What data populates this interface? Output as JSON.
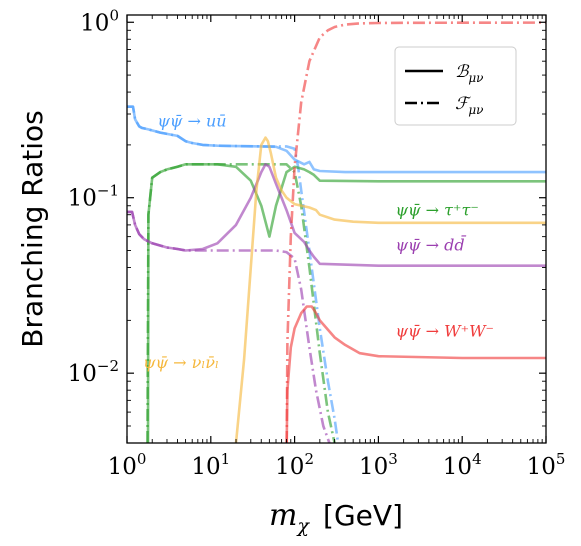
{
  "chart_data": {
    "type": "line",
    "xlabel_main": "m",
    "xlabel_sub": "χ",
    "xlabel_unit": "[GeV]",
    "ylabel": "Branching Ratios",
    "xscale": "log",
    "yscale": "log",
    "xlim": [
      1,
      100000
    ],
    "ylim": [
      0.004,
      1.1
    ],
    "grid": false,
    "legend_placement": "top-right",
    "x_ticks": [
      {
        "value": 1,
        "base": "10",
        "exp": "0"
      },
      {
        "value": 10,
        "base": "10",
        "exp": "1"
      },
      {
        "value": 100,
        "base": "10",
        "exp": "2"
      },
      {
        "value": 1000,
        "base": "10",
        "exp": "3"
      },
      {
        "value": 10000,
        "base": "10",
        "exp": "4"
      },
      {
        "value": 100000,
        "base": "10",
        "exp": "5"
      }
    ],
    "y_ticks": [
      {
        "value": 1,
        "base": "10",
        "exp": "0"
      },
      {
        "value": 0.1,
        "base": "10",
        "exp": "−1"
      },
      {
        "value": 0.01,
        "base": "10",
        "exp": "−2"
      }
    ],
    "legend": [
      {
        "label": "ℬ",
        "sub": "μν",
        "style": "solid"
      },
      {
        "label": "ℱ",
        "sub": "μν",
        "style": "dashdot"
      }
    ],
    "annotations": [
      {
        "text": "ψψ̄ → uū",
        "x": 2.3,
        "y": 0.255,
        "color": "#4a9eff"
      },
      {
        "text": "ψψ̄ → τ⁺τ⁻",
        "x": 1600,
        "y": 0.079,
        "color": "#2ca02c"
      },
      {
        "text": "ψψ̄ → dd̄",
        "x": 1600,
        "y": 0.05,
        "color": "#9b3fb0"
      },
      {
        "text": "ψψ̄ → W⁺W⁻",
        "x": 1600,
        "y": 0.0162,
        "color": "#f03c3c"
      },
      {
        "text": "ψψ̄ → νₗν̄ₗ",
        "x": 1.55,
        "y": 0.0107,
        "color": "#f5b83d"
      }
    ],
    "series": [
      {
        "channel": "uu",
        "style": "solid",
        "color": "#4a9eff",
        "x": [
          1,
          1.18,
          1.25,
          1.4,
          1.5,
          1.8,
          2.5,
          4,
          5,
          6,
          8,
          12,
          20,
          40,
          60,
          80,
          100,
          130,
          150,
          170,
          200,
          400,
          1000,
          100000
        ],
        "y": [
          0.33,
          0.33,
          0.28,
          0.255,
          0.25,
          0.245,
          0.235,
          0.225,
          0.21,
          0.205,
          0.2,
          0.198,
          0.197,
          0.196,
          0.195,
          0.185,
          0.165,
          0.155,
          0.16,
          0.145,
          0.142,
          0.14,
          0.14,
          0.14
        ]
      },
      {
        "channel": "uu",
        "style": "dashdot",
        "color": "#4a9eff",
        "x": [
          1,
          1.18,
          1.25,
          1.4,
          1.5,
          1.8,
          2.5,
          4,
          5,
          6,
          8,
          12,
          20,
          40,
          60,
          80,
          100,
          110,
          120,
          150,
          200,
          250,
          300,
          330
        ],
        "y": [
          0.33,
          0.33,
          0.28,
          0.255,
          0.25,
          0.245,
          0.235,
          0.225,
          0.21,
          0.205,
          0.2,
          0.198,
          0.197,
          0.196,
          0.196,
          0.196,
          0.19,
          0.15,
          0.11,
          0.05,
          0.018,
          0.009,
          0.0055,
          0.004
        ]
      },
      {
        "channel": "tautau",
        "style": "solid",
        "color": "#2ca02c",
        "x": [
          1.78,
          1.8,
          2,
          2.5,
          3,
          4,
          5,
          8,
          12,
          20,
          30,
          40,
          50,
          60,
          80,
          100,
          130,
          150,
          170,
          200,
          1000,
          100000
        ],
        "y": [
          0.004,
          0.08,
          0.13,
          0.14,
          0.145,
          0.15,
          0.155,
          0.155,
          0.155,
          0.15,
          0.125,
          0.09,
          0.06,
          0.09,
          0.14,
          0.15,
          0.145,
          0.14,
          0.135,
          0.125,
          0.124,
          0.124
        ]
      },
      {
        "channel": "tautau",
        "style": "dashdot",
        "color": "#2ca02c",
        "x": [
          1.75,
          1.8,
          2,
          2.5,
          3,
          4,
          5,
          8,
          12,
          20,
          40,
          60,
          80,
          100,
          120,
          150,
          200,
          250,
          300
        ],
        "y": [
          0.004,
          0.08,
          0.13,
          0.14,
          0.145,
          0.15,
          0.155,
          0.155,
          0.155,
          0.155,
          0.155,
          0.155,
          0.155,
          0.14,
          0.09,
          0.04,
          0.013,
          0.006,
          0.004
        ]
      },
      {
        "channel": "dd",
        "style": "solid",
        "color": "#9b3fb0",
        "x": [
          1,
          1.15,
          1.25,
          1.4,
          1.6,
          2,
          3,
          4,
          5,
          8,
          12,
          20,
          30,
          40,
          45,
          50,
          60,
          80,
          100,
          130,
          150,
          170,
          200,
          1000,
          100000
        ],
        "y": [
          0.083,
          0.083,
          0.07,
          0.062,
          0.058,
          0.055,
          0.052,
          0.051,
          0.05,
          0.051,
          0.055,
          0.07,
          0.1,
          0.14,
          0.155,
          0.15,
          0.12,
          0.085,
          0.063,
          0.056,
          0.05,
          0.046,
          0.042,
          0.041,
          0.041
        ]
      },
      {
        "channel": "dd",
        "style": "dashdot",
        "color": "#9b3fb0",
        "x": [
          1,
          1.15,
          1.25,
          1.4,
          1.6,
          2,
          3,
          4,
          5,
          10,
          20,
          40,
          60,
          80,
          100,
          120,
          150,
          180,
          220,
          260
        ],
        "y": [
          0.083,
          0.083,
          0.07,
          0.062,
          0.058,
          0.055,
          0.052,
          0.051,
          0.05,
          0.05,
          0.05,
          0.05,
          0.05,
          0.049,
          0.045,
          0.03,
          0.014,
          0.008,
          0.005,
          0.004
        ]
      },
      {
        "channel": "WW",
        "style": "solid",
        "color": "#f03c3c",
        "x": [
          80.4,
          82,
          90,
          100,
          120,
          140,
          160,
          180,
          200,
          300,
          400,
          600,
          1000,
          10000,
          100000
        ],
        "y": [
          0.004,
          0.008,
          0.014,
          0.018,
          0.022,
          0.024,
          0.024,
          0.022,
          0.02,
          0.016,
          0.0145,
          0.013,
          0.0125,
          0.0122,
          0.0122
        ]
      },
      {
        "channel": "WW",
        "style": "dashdot",
        "color": "#f03c3c",
        "x": [
          80.4,
          82,
          90,
          100,
          120,
          150,
          200,
          250,
          300,
          400,
          600,
          1000,
          2000,
          100000
        ],
        "y": [
          0.004,
          0.015,
          0.06,
          0.15,
          0.35,
          0.6,
          0.82,
          0.9,
          0.94,
          0.97,
          0.985,
          0.99,
          0.993,
          0.995
        ]
      },
      {
        "channel": "nunu",
        "style": "solid",
        "color": "#f5b83d",
        "x": [
          20,
          25,
          30,
          35,
          40,
          45,
          48,
          52,
          60,
          70,
          80,
          100,
          120,
          150,
          180,
          200,
          300,
          500,
          1000,
          100000
        ],
        "y": [
          0.004,
          0.012,
          0.04,
          0.11,
          0.2,
          0.22,
          0.21,
          0.18,
          0.13,
          0.11,
          0.1,
          0.092,
          0.09,
          0.088,
          0.085,
          0.08,
          0.075,
          0.073,
          0.072,
          0.072
        ]
      }
    ]
  }
}
